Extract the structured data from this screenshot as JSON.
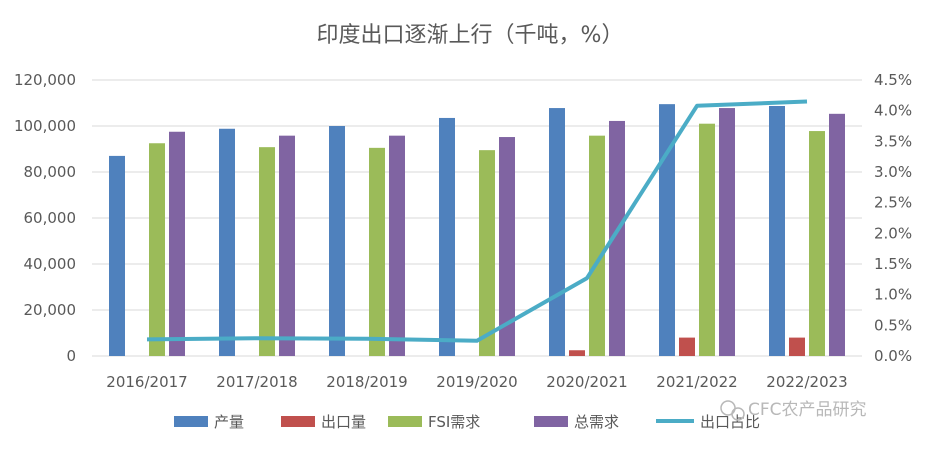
{
  "chart_data": {
    "type": "bar",
    "title": "印度出口逐渐上行（千吨，%）",
    "categories": [
      "2016/2017",
      "2017/2018",
      "2018/2019",
      "2019/2020",
      "2020/2021",
      "2021/2022",
      "2022/2023"
    ],
    "series": [
      {
        "name": "产量",
        "type": "bar",
        "axis": "left",
        "color": "#4f81bd",
        "values": [
          87000,
          98800,
          100000,
          103500,
          107800,
          109500,
          108700
        ]
      },
      {
        "name": "出口量",
        "type": "bar",
        "axis": "left",
        "color": "#c0504d",
        "values": [
          0,
          0,
          0,
          0,
          2500,
          8000,
          8000
        ]
      },
      {
        "name": "FSI需求",
        "type": "bar",
        "axis": "left",
        "color": "#9bbb59",
        "values": [
          92500,
          90800,
          90500,
          89500,
          95800,
          101000,
          97800
        ]
      },
      {
        "name": "总需求",
        "type": "bar",
        "axis": "left",
        "color": "#8064a2",
        "values": [
          97500,
          95800,
          95800,
          95200,
          102200,
          107800,
          105300
        ]
      },
      {
        "name": "出口占比",
        "type": "line",
        "axis": "right",
        "color": "#4bacc6",
        "values": [
          0.27,
          0.29,
          0.28,
          0.25,
          1.27,
          4.08,
          4.15
        ]
      }
    ],
    "y_left": {
      "min": 0,
      "max": 120000,
      "ticks": [
        "0",
        "20,000",
        "40,000",
        "60,000",
        "80,000",
        "100,000",
        "120,000"
      ]
    },
    "y_right": {
      "min": 0,
      "max": 4.5,
      "ticks": [
        "0.0%",
        "0.5%",
        "1.0%",
        "1.5%",
        "2.0%",
        "2.5%",
        "3.0%",
        "3.5%",
        "4.0%",
        "4.5%"
      ]
    },
    "grid": true,
    "legend_position": "bottom"
  },
  "watermark": "CFC农产品研究",
  "colors": {
    "grid": "#d9d9d9",
    "text": "#595959"
  }
}
